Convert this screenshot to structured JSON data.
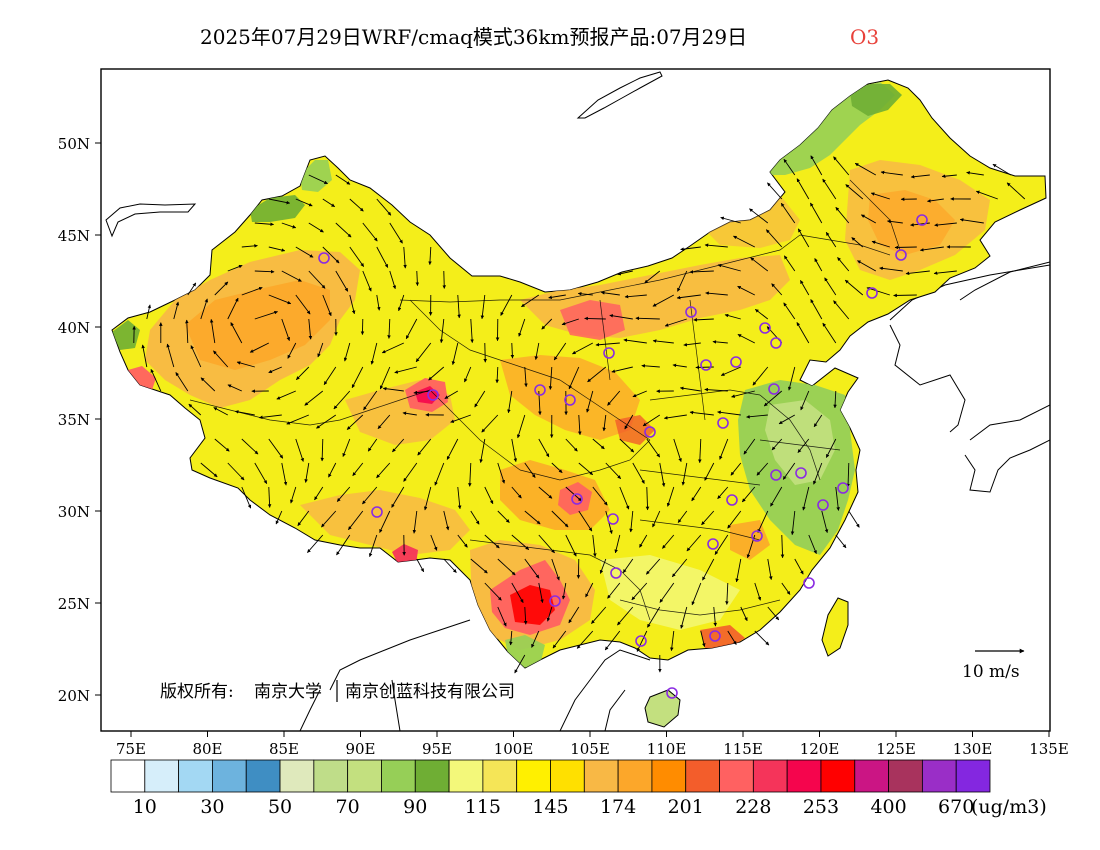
{
  "header": {
    "title": "2025年07月29日WRF/cmaq模式36km预报产品:07月29日",
    "species": "O3",
    "species_color": "#e8413a"
  },
  "map": {
    "lat_labels": [
      "50N",
      "45N",
      "40N",
      "35N",
      "30N",
      "25N",
      "20N"
    ],
    "lon_labels": [
      "75E",
      "80E",
      "85E",
      "90E",
      "95E",
      "100E",
      "105E",
      "110E",
      "115E",
      "120E",
      "125E",
      "130E",
      "135E"
    ],
    "copyright_prefix": "版权所有:",
    "copyright_org1": "南京大学",
    "copyright_org2": "南京创蓝科技有限公司",
    "wind_scale_label": "10 m/s"
  },
  "legend": {
    "colors": [
      "#ffffff",
      "#d6eefa",
      "#a3d8f3",
      "#6db3de",
      "#3f8ec3",
      "#dfe9bc",
      "#bfdd89",
      "#c3e07f",
      "#96cf57",
      "#6fae34",
      "#f3f87a",
      "#f5e557",
      "#fff000",
      "#ffe000",
      "#f8b845",
      "#fca72a",
      "#ff8c00",
      "#f35d2b",
      "#ff6161",
      "#f5345a",
      "#f5054d",
      "#ff0000",
      "#cb1584",
      "#a8335d",
      "#9a2ec7",
      "#8427e0"
    ],
    "labels": [
      "10",
      "30",
      "50",
      "70",
      "90",
      "115",
      "145",
      "174",
      "201",
      "228",
      "253",
      "400",
      "670"
    ],
    "unit": "(ug/m3)"
  },
  "stations": {
    "marker_color": "#8a2be2"
  }
}
